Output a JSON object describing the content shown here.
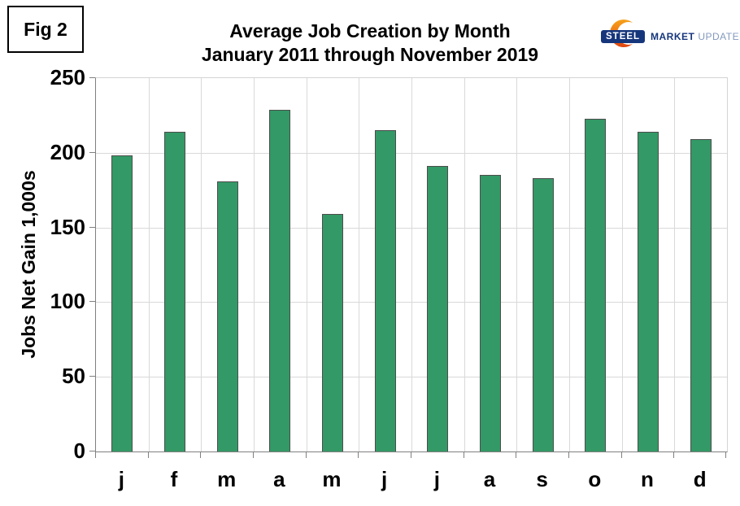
{
  "figure": {
    "label": "Fig 2"
  },
  "title": {
    "line1": "Average Job Creation by Month",
    "line2": "January 2011 through November 2019"
  },
  "logo": {
    "steel": "STEEL",
    "market": "MARKET",
    "update": "UPDATE",
    "navy": "#16367c",
    "update_color": "#8399bd"
  },
  "chart_data": {
    "type": "bar",
    "title": "Average Job Creation by Month",
    "subtitle": "January 2011 through November 2019",
    "xlabel": "",
    "ylabel": "Jobs Net Gain 1,000s",
    "categories": [
      "j",
      "f",
      "m",
      "a",
      "m",
      "j",
      "j",
      "a",
      "s",
      "o",
      "n",
      "d"
    ],
    "values": [
      198,
      214,
      181,
      229,
      159,
      215,
      191,
      185,
      183,
      223,
      214,
      209
    ],
    "ylim": [
      0,
      250
    ],
    "yticks": [
      0,
      50,
      100,
      150,
      200,
      250
    ],
    "grid": true,
    "legend": false,
    "bar_color": "#339966",
    "bar_border_color": "#4d4d4d",
    "gridline_color": "#d9d9d9",
    "axis_color": "#808080"
  }
}
